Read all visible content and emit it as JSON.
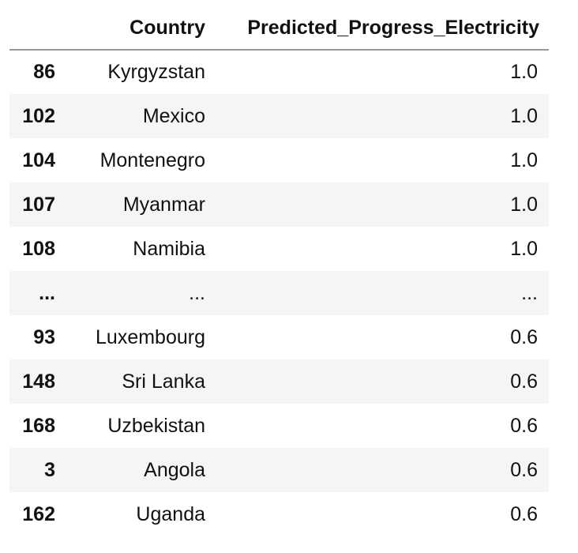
{
  "table": {
    "columns": [
      "",
      "Country",
      "Predicted_Progress_Electricity"
    ],
    "rows": [
      {
        "index": "86",
        "country": "Kyrgyzstan",
        "value": "1.0"
      },
      {
        "index": "102",
        "country": "Mexico",
        "value": "1.0"
      },
      {
        "index": "104",
        "country": "Montenegro",
        "value": "1.0"
      },
      {
        "index": "107",
        "country": "Myanmar",
        "value": "1.0"
      },
      {
        "index": "108",
        "country": "Namibia",
        "value": "1.0"
      },
      {
        "index": "...",
        "country": "...",
        "value": "..."
      },
      {
        "index": "93",
        "country": "Luxembourg",
        "value": "0.6"
      },
      {
        "index": "148",
        "country": "Sri Lanka",
        "value": "0.6"
      },
      {
        "index": "168",
        "country": "Uzbekistan",
        "value": "0.6"
      },
      {
        "index": "3",
        "country": "Angola",
        "value": "0.6"
      },
      {
        "index": "162",
        "country": "Uganda",
        "value": "0.6"
      }
    ]
  }
}
